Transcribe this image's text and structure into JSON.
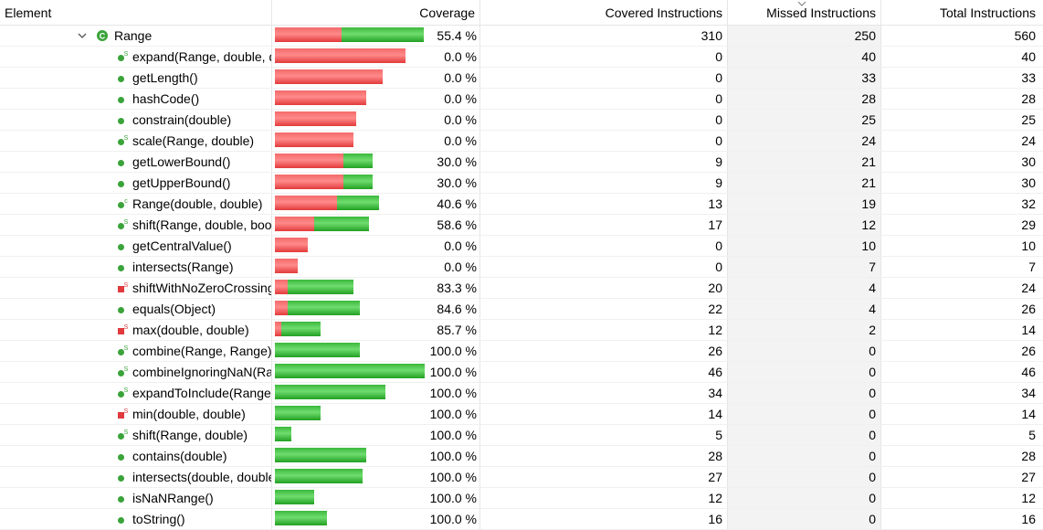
{
  "header": {
    "element": "Element",
    "coverage": "Coverage",
    "covered": "Covered Instructions",
    "missed": "Missed Instructions",
    "total": "Total Instructions"
  },
  "colors": {
    "missed": "#f36a6a",
    "covered": "#3cb83c",
    "icon_green": "#3aa33a",
    "icon_red": "#e0393e"
  },
  "rows": [
    {
      "kind": "class",
      "label": "Range",
      "coverage": "55.4 %",
      "covered": 310,
      "missed": 250,
      "total": 560,
      "icon": "class-icon"
    },
    {
      "kind": "method",
      "label": "expand(Range, double, double)",
      "coverage": "0.0 %",
      "covered": 0,
      "missed": 40,
      "total": 40,
      "icon": "static-public-method-icon"
    },
    {
      "kind": "method",
      "label": "getLength()",
      "coverage": "0.0 %",
      "covered": 0,
      "missed": 33,
      "total": 33,
      "icon": "public-method-icon"
    },
    {
      "kind": "method",
      "label": "hashCode()",
      "coverage": "0.0 %",
      "covered": 0,
      "missed": 28,
      "total": 28,
      "icon": "public-method-icon"
    },
    {
      "kind": "method",
      "label": "constrain(double)",
      "coverage": "0.0 %",
      "covered": 0,
      "missed": 25,
      "total": 25,
      "icon": "public-method-icon"
    },
    {
      "kind": "method",
      "label": "scale(Range, double)",
      "coverage": "0.0 %",
      "covered": 0,
      "missed": 24,
      "total": 24,
      "icon": "static-public-method-icon"
    },
    {
      "kind": "method",
      "label": "getLowerBound()",
      "coverage": "30.0 %",
      "covered": 9,
      "missed": 21,
      "total": 30,
      "icon": "public-method-icon"
    },
    {
      "kind": "method",
      "label": "getUpperBound()",
      "coverage": "30.0 %",
      "covered": 9,
      "missed": 21,
      "total": 30,
      "icon": "public-method-icon"
    },
    {
      "kind": "method",
      "label": "Range(double, double)",
      "coverage": "40.6 %",
      "covered": 13,
      "missed": 19,
      "total": 32,
      "icon": "constructor-icon"
    },
    {
      "kind": "method",
      "label": "shift(Range, double, boolean)",
      "coverage": "58.6 %",
      "covered": 17,
      "missed": 12,
      "total": 29,
      "icon": "static-public-method-icon"
    },
    {
      "kind": "method",
      "label": "getCentralValue()",
      "coverage": "0.0 %",
      "covered": 0,
      "missed": 10,
      "total": 10,
      "icon": "public-method-icon"
    },
    {
      "kind": "method",
      "label": "intersects(Range)",
      "coverage": "0.0 %",
      "covered": 0,
      "missed": 7,
      "total": 7,
      "icon": "public-method-icon"
    },
    {
      "kind": "method",
      "label": "shiftWithNoZeroCrossing(double, double)",
      "coverage": "83.3 %",
      "covered": 20,
      "missed": 4,
      "total": 24,
      "icon": "static-private-method-icon"
    },
    {
      "kind": "method",
      "label": "equals(Object)",
      "coverage": "84.6 %",
      "covered": 22,
      "missed": 4,
      "total": 26,
      "icon": "public-method-icon"
    },
    {
      "kind": "method",
      "label": "max(double, double)",
      "coverage": "85.7 %",
      "covered": 12,
      "missed": 2,
      "total": 14,
      "icon": "static-private-method-icon"
    },
    {
      "kind": "method",
      "label": "combine(Range, Range)",
      "coverage": "100.0 %",
      "covered": 26,
      "missed": 0,
      "total": 26,
      "icon": "static-public-method-icon"
    },
    {
      "kind": "method",
      "label": "combineIgnoringNaN(Range, Range)",
      "coverage": "100.0 %",
      "covered": 46,
      "missed": 0,
      "total": 46,
      "icon": "static-public-method-icon"
    },
    {
      "kind": "method",
      "label": "expandToInclude(Range, double)",
      "coverage": "100.0 %",
      "covered": 34,
      "missed": 0,
      "total": 34,
      "icon": "static-public-method-icon"
    },
    {
      "kind": "method",
      "label": "min(double, double)",
      "coverage": "100.0 %",
      "covered": 14,
      "missed": 0,
      "total": 14,
      "icon": "static-private-method-icon"
    },
    {
      "kind": "method",
      "label": "shift(Range, double)",
      "coverage": "100.0 %",
      "covered": 5,
      "missed": 0,
      "total": 5,
      "icon": "static-public-method-icon"
    },
    {
      "kind": "method",
      "label": "contains(double)",
      "coverage": "100.0 %",
      "covered": 28,
      "missed": 0,
      "total": 28,
      "icon": "public-method-icon"
    },
    {
      "kind": "method",
      "label": "intersects(double, double)",
      "coverage": "100.0 %",
      "covered": 27,
      "missed": 0,
      "total": 27,
      "icon": "public-method-icon"
    },
    {
      "kind": "method",
      "label": "isNaNRange()",
      "coverage": "100.0 %",
      "covered": 12,
      "missed": 0,
      "total": 12,
      "icon": "public-method-icon"
    },
    {
      "kind": "method",
      "label": "toString()",
      "coverage": "100.0 %",
      "covered": 16,
      "missed": 0,
      "total": 16,
      "icon": "public-method-icon"
    }
  ]
}
